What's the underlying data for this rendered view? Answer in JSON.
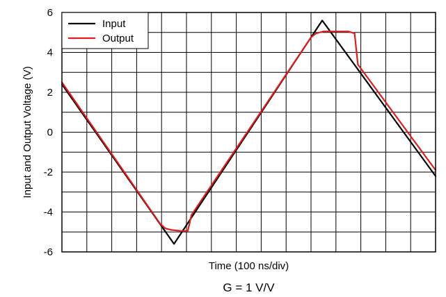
{
  "chart_data": {
    "type": "line",
    "title": "",
    "xlabel": "Time (100 ns/div)",
    "ylabel": "Input and Output Voltage (V)",
    "caption": "G = 1 V/V",
    "x_divisions": 15,
    "xlim": [
      0,
      15
    ],
    "ylim": [
      -6,
      6
    ],
    "y_ticks": [
      -6,
      -4,
      -2,
      0,
      2,
      4,
      6
    ],
    "y_tick_labels": [
      "-6",
      "-4",
      "-2",
      "0",
      "2",
      "4",
      "6"
    ],
    "grid": true,
    "legend_position": "top-left",
    "series": [
      {
        "name": "Input",
        "color": "#000000",
        "x": [
          0,
          4.5,
          10.45,
          15
        ],
        "y": [
          2.4,
          -5.6,
          5.6,
          -2.2
        ]
      },
      {
        "name": "Output",
        "color": "#e41a1c",
        "x": [
          0,
          3.95,
          4.15,
          4.4,
          4.8,
          5.05,
          5.12,
          5.2,
          10.0,
          10.2,
          10.5,
          11.5,
          11.75,
          11.88,
          15
        ],
        "y": [
          2.5,
          -4.6,
          -4.82,
          -4.9,
          -4.95,
          -4.95,
          -4.6,
          -4.15,
          4.75,
          4.95,
          5.05,
          5.05,
          4.95,
          3.4,
          -1.9
        ]
      }
    ]
  }
}
